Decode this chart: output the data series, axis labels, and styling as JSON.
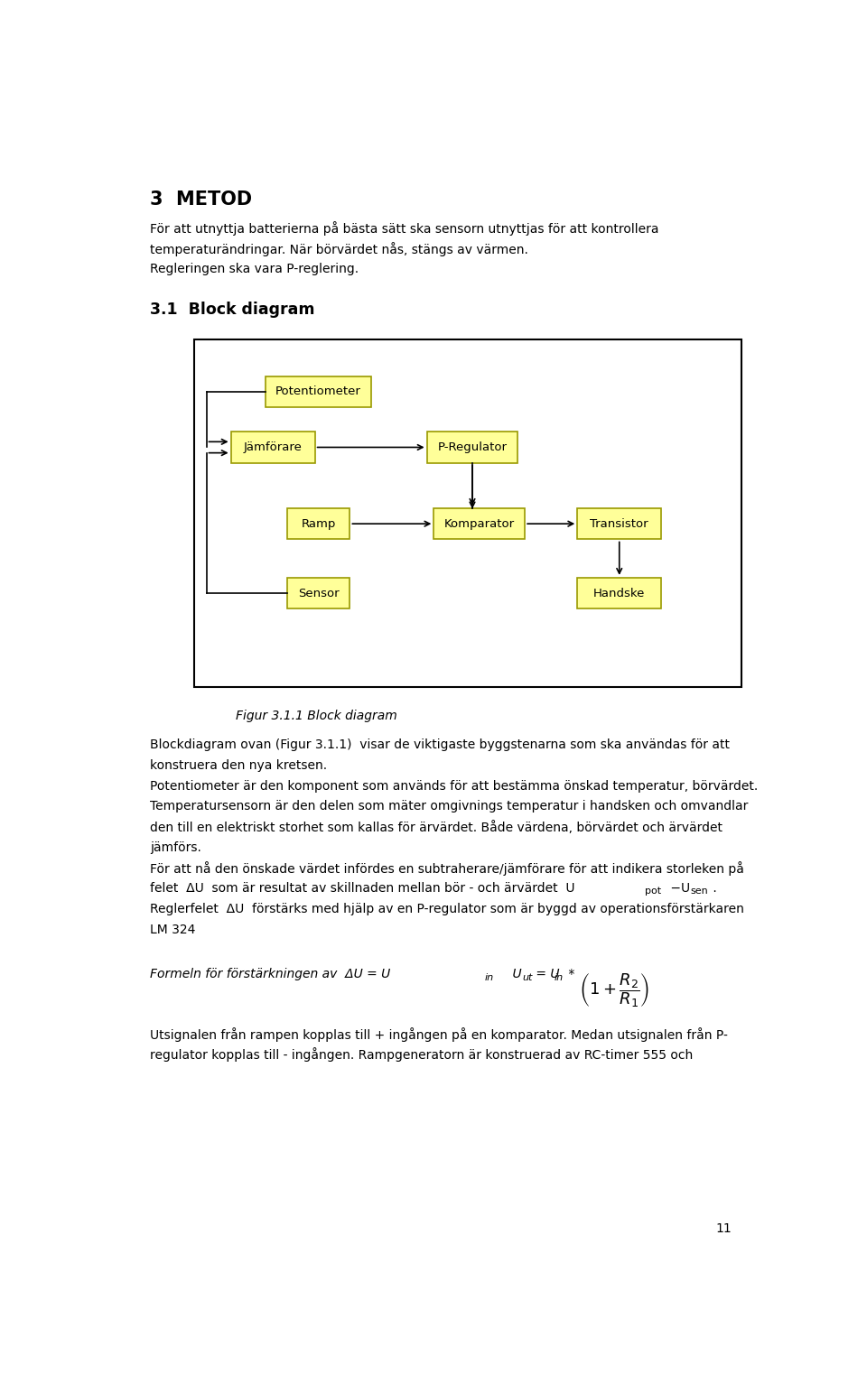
{
  "page_width": 9.6,
  "page_height": 15.43,
  "background_color": "#ffffff",
  "heading": "3  METOD",
  "para1_lines": [
    "För att utnyttja batterierna på bästa sätt ska sensorn utnyttjas för att kontrollera",
    "temperaturändringar. När börvärdet nås, stängs av värmen.",
    "Regleringen ska vara P-reglering."
  ],
  "section_heading": "3.1  Block diagram",
  "figure_caption": "Figur 3.1.1 Block diagram",
  "body_lines": [
    "Blockdiagram ovan (Figur 3.1.1)  visar de viktigaste byggstenarna som ska användas för att",
    "konstruera den nya kretsen.",
    "Potentiometer är den komponent som används för att bestämma önskad temperatur, börvärdet.",
    "Temperatursensorn är den delen som mäter omgivnings temperatur i handsken och omvandlar",
    "den till en elektriskt storhet som kallas för ärvärdet. Både värdena, börvärdet och ärvärdet",
    "jämförs.",
    "För att nå den önskade värdet infördes en subtraherare/jämförare för att indikera storleken på",
    "felet_special",
    "reg_special",
    "LM 324"
  ],
  "para3_lines": [
    "Utsignalen från rampen kopplas till + ingången på en komparator. Medan utsignalen från P-",
    "regulator kopplas till - ingången. Rampgeneratorn är konstruerad av RC-timer 555 och"
  ],
  "page_number": "11",
  "box_fill": "#ffff99",
  "box_edge": "#999900",
  "diagram_border": "#000000"
}
